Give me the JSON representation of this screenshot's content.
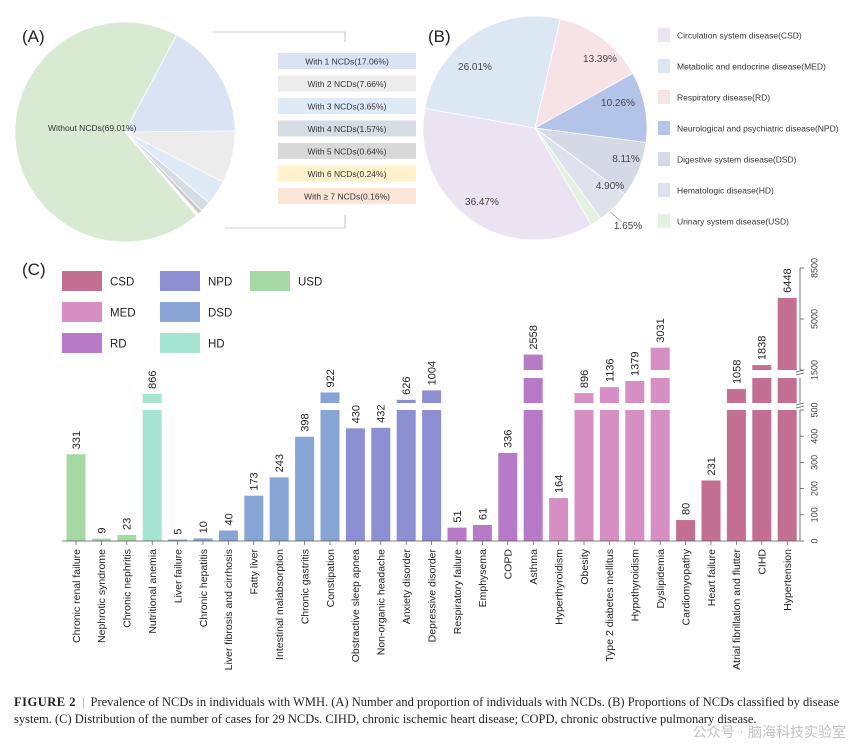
{
  "panel_labels": {
    "a": "(A)",
    "b": "(B)",
    "c": "(C)"
  },
  "caption": {
    "figure_label": "FIGURE 2",
    "separator": "|",
    "text": "Prevalence of NCDs in individuals with WMH. (A) Number and proportion of individuals with NCDs. (B) Proportions of NCDs classified by disease system. (C) Distribution of the number of cases for 29 NCDs. CIHD, chronic ischemic heart disease; COPD, chronic obstructive pulmonary disease."
  },
  "watermark": "公众号 · 脑海科技实验室",
  "chart_data": [
    {
      "id": "A",
      "type": "pie",
      "slices": [
        {
          "label": "Without NCDs(69.01%)",
          "value": 69.01,
          "color": "#d9ead3"
        },
        {
          "label": "With 1 NCDs(17.06%)",
          "value": 17.06,
          "color": "#dae3f3"
        },
        {
          "label": "With 2 NCDs(7.66%)",
          "value": 7.66,
          "color": "#ececec"
        },
        {
          "label": "With 3 NCDs(3.65%)",
          "value": 3.65,
          "color": "#deebf7"
        },
        {
          "label": "With 4 NCDs(1.57%)",
          "value": 1.57,
          "color": "#d6dce4"
        },
        {
          "label": "With 5 NCDs(0.64%)",
          "value": 0.64,
          "color": "#c9c9c9"
        },
        {
          "label": "With 6 NCDs(0.24%)",
          "value": 0.24,
          "color": "#fff2cc"
        },
        {
          "label": "With ≥ 7 NCDs(0.16%)",
          "value": 0.16,
          "color": "#fbe5d6"
        }
      ]
    },
    {
      "id": "B",
      "type": "pie",
      "slices": [
        {
          "name": "Circulation system disease(CSD)",
          "label": "36.47%",
          "value": 36.47,
          "color": "#ebe3f1"
        },
        {
          "name": "Metabolic and endocrine disease(MED)",
          "label": "26.01%",
          "value": 26.01,
          "color": "#dce7f4"
        },
        {
          "name": "Respiratory disease(RD)",
          "label": "13.39%",
          "value": 13.39,
          "color": "#f7e3e6"
        },
        {
          "name": "Neurological and psychiatric disease(NPD)",
          "label": "10.26%",
          "value": 10.26,
          "color": "#b3c4e8"
        },
        {
          "name": "Digestive system disease(DSD)",
          "label": "8.11%",
          "value": 8.11,
          "color": "#d3dae5"
        },
        {
          "name": "Hematologic disease(HD)",
          "label": "4.90%",
          "value": 4.9,
          "color": "#dde2ec"
        },
        {
          "name": "Urinary system disease(USD)",
          "label": "1.65%",
          "value": 1.65,
          "color": "#e3f2e0"
        }
      ]
    },
    {
      "id": "C",
      "type": "bar",
      "legend": [
        {
          "name": "CSD",
          "color": "#c26f92"
        },
        {
          "name": "NPD",
          "color": "#8c8fd2"
        },
        {
          "name": "USD",
          "color": "#a5d8a3"
        },
        {
          "name": "MED",
          "color": "#d58fc3"
        },
        {
          "name": "DSD",
          "color": "#86a5d4"
        },
        {
          "name": "RD",
          "color": "#b67ac6"
        },
        {
          "name": "HD",
          "color": "#a6e4d2"
        }
      ],
      "y_axis_ticks": [
        "0",
        "100",
        "200",
        "300",
        "400",
        "500",
        "1500",
        "5000",
        "8500"
      ],
      "categories": [
        "Chronic renal failure",
        "Nephrotic syndrome",
        "Chronic nephritis",
        "Nutritional anemia",
        "Liver failure",
        "Chronic hepatitis",
        "Liver fibrosis and cirrhosis",
        "Fatty liver",
        "Intestinal malabsorption",
        "Chronic gastritis",
        "Constipation",
        "Obstractive sleep apnea",
        "Non-organic headache",
        "Anxiety disorder",
        "Depressive disorder",
        "Respiratory failure",
        "Emphysema",
        "COPD",
        "Asthma",
        "Hyperthyroidism",
        "Obesity",
        "Type 2 diabetes mellitus",
        "Hypothyroidism",
        "Dyslipidemia",
        "Cardiomyopathy",
        "Heart failure",
        "Atrial fibrillation and flutter",
        "CIHD",
        "Hypertension"
      ],
      "values": [
        331,
        9,
        23,
        866,
        5,
        10,
        40,
        173,
        243,
        398,
        922,
        430,
        432,
        626,
        1004,
        51,
        61,
        336,
        2558,
        164,
        896,
        1136,
        1379,
        3031,
        80,
        231,
        1058,
        1838,
        6448
      ],
      "groups": [
        "USD",
        "USD",
        "USD",
        "HD",
        "DSD",
        "DSD",
        "DSD",
        "DSD",
        "DSD",
        "DSD",
        "DSD",
        "NPD",
        "NPD",
        "NPD",
        "NPD",
        "RD",
        "RD",
        "RD",
        "RD",
        "MED",
        "MED",
        "MED",
        "MED",
        "MED",
        "CSD",
        "CSD",
        "CSD",
        "CSD",
        "CSD"
      ]
    }
  ]
}
